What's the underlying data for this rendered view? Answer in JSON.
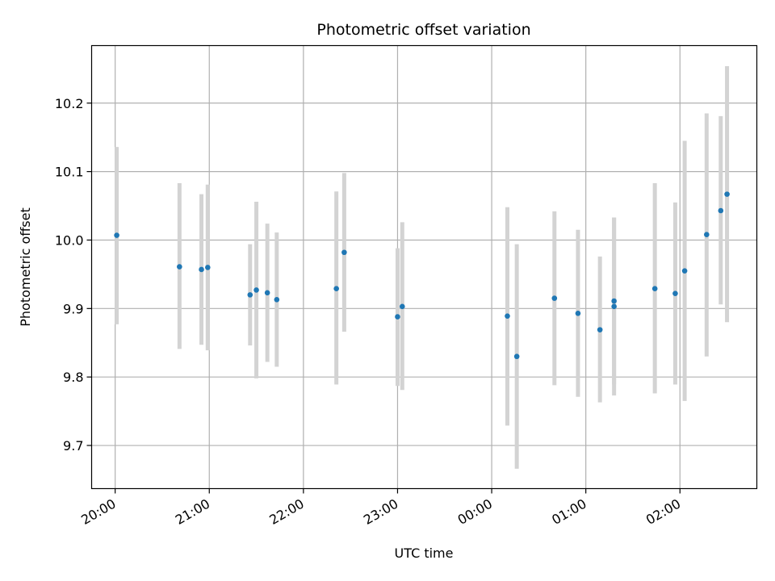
{
  "chart_data": {
    "type": "scatter",
    "title": "Photometric offset variation",
    "xlabel": "UTC time",
    "ylabel": "Photometric offset",
    "grid": true,
    "x_tick_labels": [
      "20:00",
      "21:00",
      "22:00",
      "23:00",
      "00:00",
      "01:00",
      "02:00"
    ],
    "y_tick_labels": [
      "9.7",
      "9.8",
      "9.9",
      "10.0",
      "10.1",
      "10.2"
    ],
    "xlim": [
      "19:45",
      "02:49"
    ],
    "ylim": [
      9.637,
      10.284
    ],
    "colors": {
      "points": "#1f77b4",
      "error_bars": "#d3d3d3",
      "grid": "#b0b0b0"
    },
    "series": [
      {
        "points": [
          {
            "x": "20:01",
            "y": 10.007,
            "yerr_low": 9.877,
            "yerr_high": 10.136
          },
          {
            "x": "20:41",
            "y": 9.961,
            "yerr_low": 9.841,
            "yerr_high": 10.083
          },
          {
            "x": "20:55",
            "y": 9.957,
            "yerr_low": 9.847,
            "yerr_high": 10.067
          },
          {
            "x": "20:59",
            "y": 9.96,
            "yerr_low": 9.839,
            "yerr_high": 10.081
          },
          {
            "x": "21:26",
            "y": 9.92,
            "yerr_low": 9.846,
            "yerr_high": 9.994
          },
          {
            "x": "21:30",
            "y": 9.927,
            "yerr_low": 9.798,
            "yerr_high": 10.056
          },
          {
            "x": "21:37",
            "y": 9.923,
            "yerr_low": 9.822,
            "yerr_high": 10.024
          },
          {
            "x": "21:43",
            "y": 9.913,
            "yerr_low": 9.815,
            "yerr_high": 10.011
          },
          {
            "x": "22:21",
            "y": 9.929,
            "yerr_low": 9.789,
            "yerr_high": 10.071
          },
          {
            "x": "22:26",
            "y": 9.982,
            "yerr_low": 9.866,
            "yerr_high": 10.098
          },
          {
            "x": "23:00",
            "y": 9.888,
            "yerr_low": 9.787,
            "yerr_high": 9.988
          },
          {
            "x": "23:03",
            "y": 9.903,
            "yerr_low": 9.781,
            "yerr_high": 10.026
          },
          {
            "x": "00:10",
            "y": 9.889,
            "yerr_low": 9.729,
            "yerr_high": 10.048
          },
          {
            "x": "00:16",
            "y": 9.83,
            "yerr_low": 9.666,
            "yerr_high": 9.994
          },
          {
            "x": "00:40",
            "y": 9.915,
            "yerr_low": 9.788,
            "yerr_high": 10.042
          },
          {
            "x": "00:55",
            "y": 9.893,
            "yerr_low": 9.771,
            "yerr_high": 10.015
          },
          {
            "x": "01:09",
            "y": 9.869,
            "yerr_low": 9.763,
            "yerr_high": 9.976
          },
          {
            "x": "01:18",
            "y": 9.911,
            "yerr_low": 9.789,
            "yerr_high": 10.033
          },
          {
            "x": "01:18",
            "y": 9.903,
            "yerr_low": 9.773,
            "yerr_high": 10.033
          },
          {
            "x": "01:44",
            "y": 9.929,
            "yerr_low": 9.776,
            "yerr_high": 10.083
          },
          {
            "x": "01:57",
            "y": 9.922,
            "yerr_low": 9.789,
            "yerr_high": 10.055
          },
          {
            "x": "02:03",
            "y": 9.955,
            "yerr_low": 9.765,
            "yerr_high": 10.145
          },
          {
            "x": "02:17",
            "y": 10.008,
            "yerr_low": 9.83,
            "yerr_high": 10.185
          },
          {
            "x": "02:26",
            "y": 10.043,
            "yerr_low": 9.906,
            "yerr_high": 10.181
          },
          {
            "x": "02:30",
            "y": 10.067,
            "yerr_low": 9.88,
            "yerr_high": 10.254
          }
        ]
      }
    ]
  }
}
